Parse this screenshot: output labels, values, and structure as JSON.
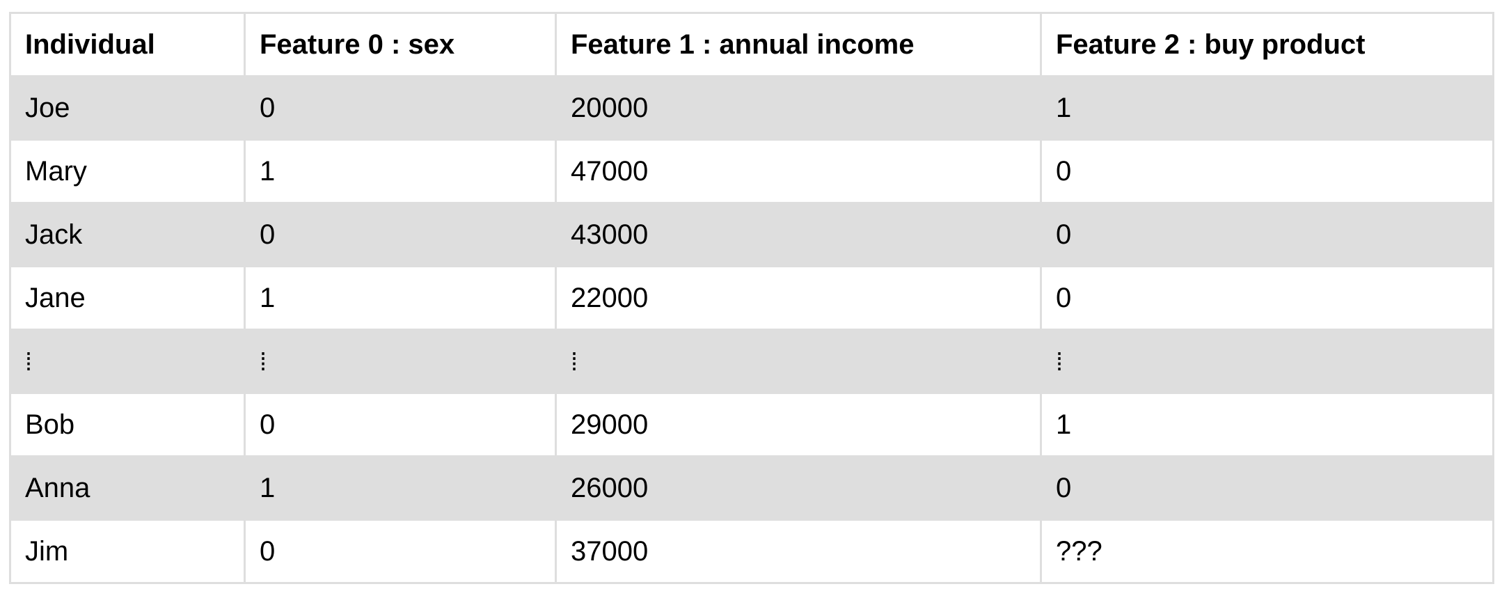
{
  "table": {
    "headers": [
      "Individual",
      "Feature 0 : sex",
      "Feature 1 : annual income",
      "Feature 2 : buy product"
    ],
    "rows": [
      [
        "Joe",
        "0",
        "20000",
        "1"
      ],
      [
        "Mary",
        "1",
        "47000",
        "0"
      ],
      [
        "Jack",
        "0",
        "43000",
        "0"
      ],
      [
        "Jane",
        "1",
        "22000",
        "0"
      ],
      [
        "⁞",
        "⁞",
        "⁞",
        "⁞"
      ],
      [
        "Bob",
        "0",
        "29000",
        "1"
      ],
      [
        "Anna",
        "1",
        "26000",
        "0"
      ],
      [
        "Jim",
        "0",
        "37000",
        "???"
      ]
    ],
    "colors": {
      "shaded_row": "#dedede",
      "border": "#dedede",
      "background": "#ffffff",
      "text": "#000000"
    }
  }
}
